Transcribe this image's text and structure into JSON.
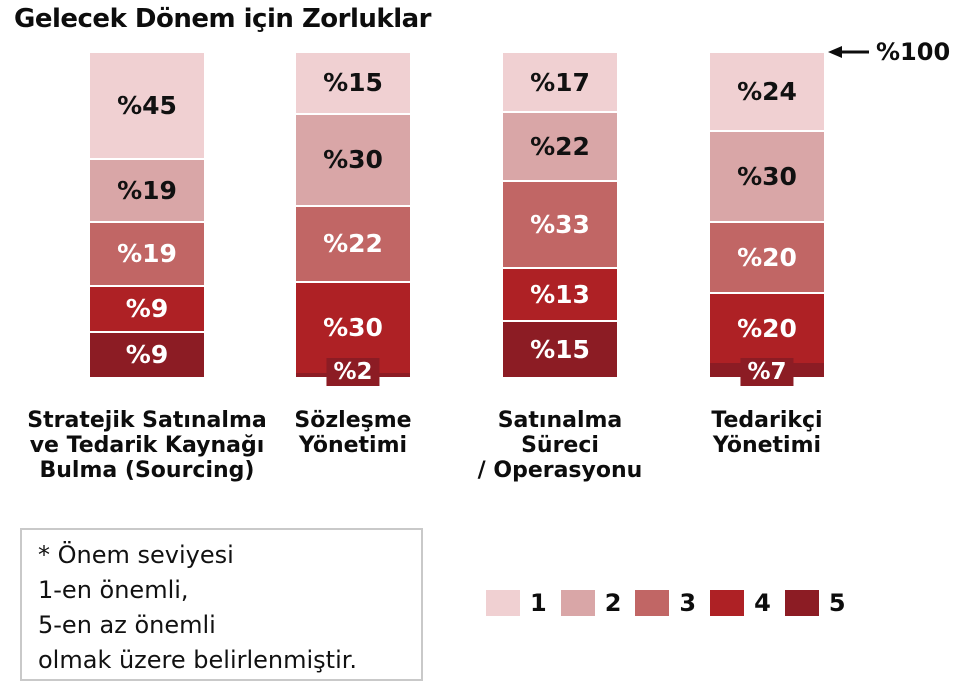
{
  "title": "Gelecek Dönem için Zorluklar",
  "annotation": {
    "label": "%100",
    "meaning": "total of each stacked bar"
  },
  "note": {
    "lines": [
      "* Önem seviyesi",
      "1-en önemli,",
      "5-en az önemli",
      "olmak üzere belirlenmiştir."
    ]
  },
  "legend": {
    "position": "bottom-right",
    "items": [
      {
        "label": "1",
        "color": "#f0d0d2"
      },
      {
        "label": "2",
        "color": "#d9a6a7"
      },
      {
        "label": "3",
        "color": "#c16665"
      },
      {
        "label": "4",
        "color": "#ae2125"
      },
      {
        "label": "5",
        "color": "#8c1c24"
      }
    ]
  },
  "chart_data": {
    "type": "bar",
    "stacked": true,
    "orientation": "vertical",
    "value_prefix": "%",
    "ylim": [
      0,
      100
    ],
    "grid": false,
    "categories": [
      "Stratejik Satınalma ve Tedarik Kaynağı Bulma (Sourcing)",
      "Sözleşme Yönetimi",
      "Satınalma Süreci / Operasyonu",
      "Tedarikçi Yönetimi"
    ],
    "categories_lines": [
      [
        "Stratejik Satınalma",
        "ve Tedarik Kaynağı",
        "Bulma (Sourcing)"
      ],
      [
        "Sözleşme",
        "Yönetimi"
      ],
      [
        "Satınalma",
        "Süreci",
        "/ Operasyonu"
      ],
      [
        "Tedarikçi",
        "Yönetimi"
      ]
    ],
    "series": [
      {
        "name": "1",
        "color": "#f0d0d2",
        "text_color": "#111111",
        "values": [
          45,
          15,
          17,
          24
        ]
      },
      {
        "name": "2",
        "color": "#d9a6a7",
        "text_color": "#111111",
        "values": [
          19,
          30,
          22,
          30
        ]
      },
      {
        "name": "3",
        "color": "#c16665",
        "text_color": "#ffffff",
        "values": [
          19,
          22,
          33,
          20
        ]
      },
      {
        "name": "4",
        "color": "#ae2125",
        "text_color": "#ffffff",
        "values": [
          9,
          30,
          13,
          20
        ]
      },
      {
        "name": "5",
        "color": "#8c1c24",
        "text_color": "#ffffff",
        "values": [
          9,
          2,
          15,
          7
        ]
      }
    ]
  }
}
